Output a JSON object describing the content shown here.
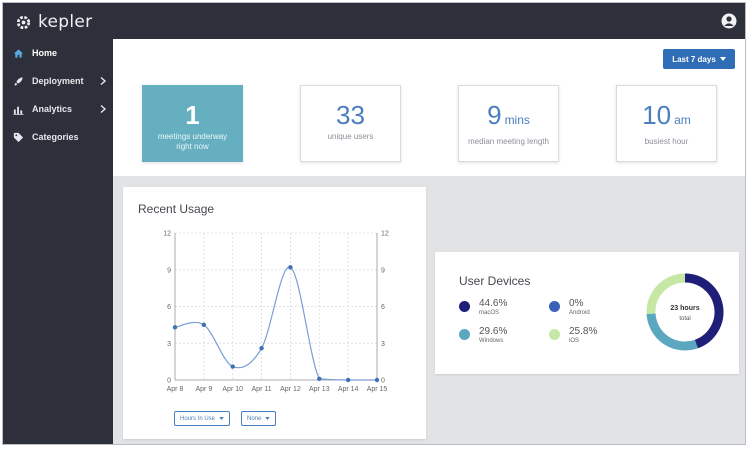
{
  "app": {
    "name": "kepler"
  },
  "sidebar": {
    "items": [
      {
        "label": "Home",
        "icon": "home-icon",
        "active": true,
        "chevron": false
      },
      {
        "label": "Deployment",
        "icon": "rocket-icon",
        "active": false,
        "chevron": true
      },
      {
        "label": "Analytics",
        "icon": "bar-chart-icon",
        "active": false,
        "chevron": true
      },
      {
        "label": "Categories",
        "icon": "tag-icon",
        "active": false,
        "chevron": false
      }
    ]
  },
  "header": {
    "range_label": "Last 7 days"
  },
  "stats": [
    {
      "value": "1",
      "unit": "",
      "label": "meetings underway right now"
    },
    {
      "value": "33",
      "unit": "",
      "label": "unique users"
    },
    {
      "value": "9",
      "unit": "mins",
      "label": "median meeting length"
    },
    {
      "value": "10",
      "unit": "am",
      "label": "busiest hour"
    }
  ],
  "usage": {
    "title": "Recent Usage",
    "dropdown_primary": "Hours In Use",
    "dropdown_secondary": "None"
  },
  "chart_data": {
    "type": "line",
    "categories": [
      "Apr 8",
      "Apr 9",
      "Apr 10",
      "Apr 11",
      "Apr 12",
      "Apr 13",
      "Apr 14",
      "Apr 15"
    ],
    "values": [
      4.3,
      4.5,
      1.1,
      2.6,
      9.2,
      0.1,
      0,
      0
    ],
    "ylim": [
      0,
      12
    ],
    "yticks": [
      0,
      3,
      6,
      9,
      12
    ],
    "grid": true,
    "secondary_axis_ticks": [
      0,
      3,
      6,
      9,
      12
    ]
  },
  "devices": {
    "title": "User Devices",
    "items": [
      {
        "pct": "44.6%",
        "name": "macOS",
        "color": "#1f1f7a",
        "value": 44.6
      },
      {
        "pct": "0%",
        "name": "Android",
        "color": "#3a63b8",
        "value": 0
      },
      {
        "pct": "29.6%",
        "name": "Windows",
        "color": "#5aa7bf",
        "value": 29.6
      },
      {
        "pct": "25.8%",
        "name": "iOS",
        "color": "#c6e8a4",
        "value": 25.8
      }
    ],
    "total_value": "23 hours",
    "total_label": "total"
  },
  "colors": {
    "sidebar": "#2d2f3a",
    "accent": "#2f6db7",
    "primary_card": "#65afc1",
    "line": "#7a9fd4",
    "point": "#3f6fb5"
  }
}
